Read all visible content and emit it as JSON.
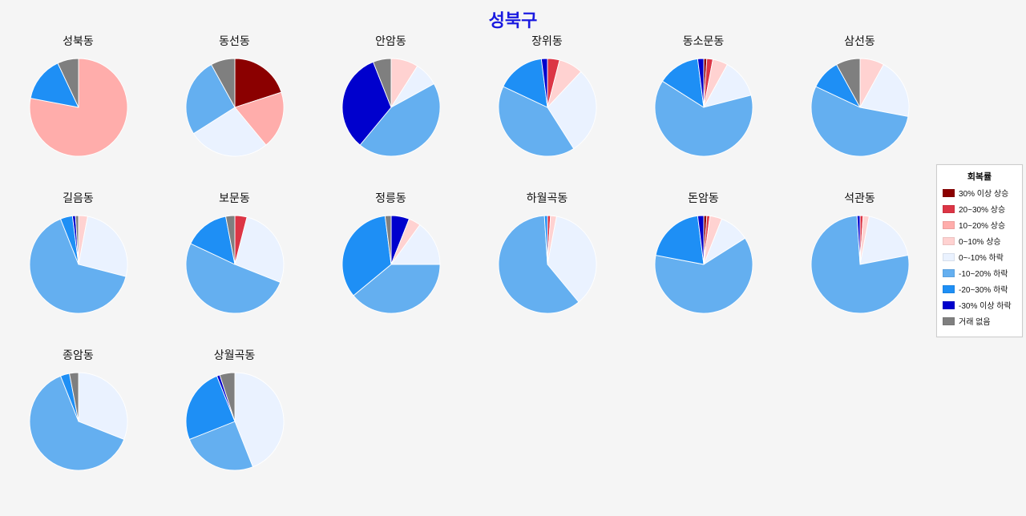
{
  "chart_data": {
    "type": "pie",
    "title": "성북구",
    "title_color": "#1a1ae0",
    "background_color": "#f5f5f5",
    "legend_title": "회복률",
    "legend_position": "right",
    "categories": [
      {
        "label": "30% 이상 상승",
        "color": "#8b0000"
      },
      {
        "label": "20~30% 상승",
        "color": "#dc3545"
      },
      {
        "label": "10~20% 상승",
        "color": "#ffadab"
      },
      {
        "label": "0~10% 상승",
        "color": "#ffd2d1"
      },
      {
        "label": "0~-10% 하락",
        "color": "#eaf2ff"
      },
      {
        "label": "-10~20% 하락",
        "color": "#64aff0"
      },
      {
        "label": "-20~30% 하락",
        "color": "#1e8ff5"
      },
      {
        "label": "-30% 이상 하락",
        "color": "#0000cd"
      },
      {
        "label": "거래 없음",
        "color": "#7f7f7f"
      }
    ],
    "pies": [
      {
        "name": "성북동",
        "slices": [
          [
            "10~20% 상승",
            78
          ],
          [
            "-20~30% 하락",
            15
          ],
          [
            "거래 없음",
            7
          ]
        ]
      },
      {
        "name": "동선동",
        "slices": [
          [
            "30% 이상 상승",
            20
          ],
          [
            "10~20% 상승",
            19
          ],
          [
            "0~-10% 하락",
            27
          ],
          [
            "-10~20% 하락",
            26
          ],
          [
            "거래 없음",
            8
          ]
        ]
      },
      {
        "name": "안암동",
        "slices": [
          [
            "0~10% 상승",
            9
          ],
          [
            "0~-10% 하락",
            8
          ],
          [
            "-10~20% 하락",
            44
          ],
          [
            "-30% 이상 하락",
            33
          ],
          [
            "거래 없음",
            6
          ]
        ]
      },
      {
        "name": "장위동",
        "slices": [
          [
            "20~30% 상승",
            4
          ],
          [
            "0~10% 상승",
            8
          ],
          [
            "0~-10% 하락",
            29
          ],
          [
            "-10~20% 하락",
            41
          ],
          [
            "-20~30% 하락",
            16
          ],
          [
            "-30% 이상 하락",
            2
          ]
        ]
      },
      {
        "name": "동소문동",
        "slices": [
          [
            "30% 이상 상승",
            1
          ],
          [
            "20~30% 상승",
            2
          ],
          [
            "0~10% 상승",
            5
          ],
          [
            "0~-10% 하락",
            13
          ],
          [
            "-10~20% 하락",
            63
          ],
          [
            "-20~30% 하락",
            14
          ],
          [
            "-30% 이상 하락",
            2
          ]
        ]
      },
      {
        "name": "삼선동",
        "slices": [
          [
            "0~10% 상승",
            8
          ],
          [
            "0~-10% 하락",
            20
          ],
          [
            "-10~20% 하락",
            54
          ],
          [
            "-20~30% 하락",
            10
          ],
          [
            "거래 없음",
            8
          ]
        ]
      },
      {
        "name": "길음동",
        "slices": [
          [
            "0~10% 상승",
            3
          ],
          [
            "0~-10% 하락",
            26
          ],
          [
            "-10~20% 하락",
            65
          ],
          [
            "-20~30% 하락",
            4
          ],
          [
            "-30% 이상 하락",
            1
          ],
          [
            "거래 없음",
            1
          ]
        ]
      },
      {
        "name": "보문동",
        "slices": [
          [
            "20~30% 상승",
            4
          ],
          [
            "0~-10% 하락",
            27
          ],
          [
            "-10~20% 하락",
            51
          ],
          [
            "-20~30% 하락",
            15
          ],
          [
            "거래 없음",
            3
          ]
        ]
      },
      {
        "name": "정릉동",
        "slices": [
          [
            "-30% 이상 하락",
            6
          ],
          [
            "0~10% 상승",
            4
          ],
          [
            "0~-10% 하락",
            15
          ],
          [
            "-10~20% 하락",
            39
          ],
          [
            "-20~30% 하락",
            34
          ],
          [
            "거래 없음",
            2
          ]
        ]
      },
      {
        "name": "하월곡동",
        "slices": [
          [
            "20~30% 상승",
            1
          ],
          [
            "0~10% 상승",
            2
          ],
          [
            "0~-10% 하락",
            36
          ],
          [
            "-10~20% 하락",
            60
          ],
          [
            "-20~30% 하락",
            1
          ]
        ]
      },
      {
        "name": "돈암동",
        "slices": [
          [
            "30% 이상 상승",
            1
          ],
          [
            "20~30% 상승",
            1
          ],
          [
            "0~10% 상승",
            4
          ],
          [
            "0~-10% 하락",
            10
          ],
          [
            "-10~20% 하락",
            62
          ],
          [
            "-20~30% 하락",
            20
          ],
          [
            "-30% 이상 하락",
            2
          ]
        ]
      },
      {
        "name": "석관동",
        "slices": [
          [
            "20~30% 상승",
            1
          ],
          [
            "0~10% 상승",
            2
          ],
          [
            "0~-10% 하락",
            19
          ],
          [
            "-10~20% 하락",
            77
          ],
          [
            "-30% 이상 하락",
            1
          ]
        ]
      },
      {
        "name": "종암동",
        "slices": [
          [
            "0~-10% 하락",
            31
          ],
          [
            "-10~20% 하락",
            63
          ],
          [
            "-20~30% 하락",
            3
          ],
          [
            "거래 없음",
            3
          ]
        ]
      },
      {
        "name": "상월곡동",
        "slices": [
          [
            "0~-10% 하락",
            44
          ],
          [
            "-10~20% 하락",
            25
          ],
          [
            "-20~30% 하락",
            25
          ],
          [
            "-30% 이상 하락",
            1
          ],
          [
            "거래 없음",
            5
          ]
        ]
      }
    ]
  }
}
